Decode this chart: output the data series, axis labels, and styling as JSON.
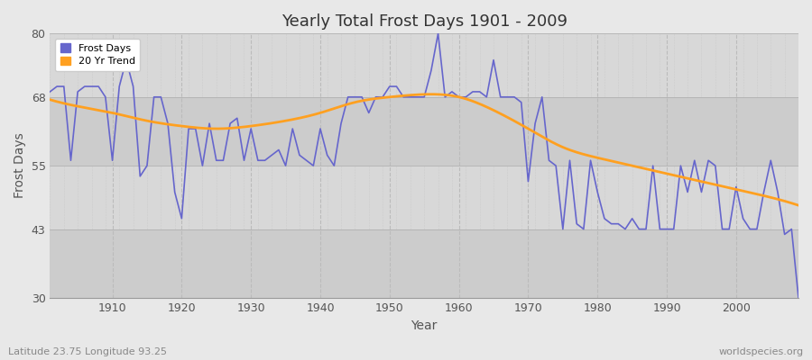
{
  "title": "Yearly Total Frost Days 1901 - 2009",
  "xlabel": "Year",
  "ylabel": "Frost Days",
  "xlim": [
    1901,
    2009
  ],
  "ylim": [
    30,
    80
  ],
  "yticks": [
    30,
    43,
    55,
    68,
    80
  ],
  "xticks": [
    1910,
    1920,
    1930,
    1940,
    1950,
    1960,
    1970,
    1980,
    1990,
    2000
  ],
  "bg_color": "#e8e8e8",
  "plot_bg_color": "#dcdcdc",
  "line_color": "#6666cc",
  "trend_color": "#ffa020",
  "legend_labels": [
    "Frost Days",
    "20 Yr Trend"
  ],
  "footer_left": "Latitude 23.75 Longitude 93.25",
  "footer_right": "worldspecies.org",
  "band_colors": [
    "#d8d8d8",
    "#e0e0e0"
  ],
  "band_ranges": [
    [
      30,
      43
    ],
    [
      43,
      55
    ],
    [
      55,
      68
    ],
    [
      68,
      80
    ]
  ],
  "frost_days": [
    69,
    70,
    70,
    56,
    69,
    70,
    70,
    70,
    68,
    56,
    70,
    75,
    70,
    53,
    55,
    68,
    68,
    63,
    50,
    45,
    62,
    62,
    55,
    63,
    56,
    56,
    63,
    64,
    56,
    62,
    56,
    56,
    57,
    58,
    55,
    62,
    57,
    56,
    55,
    62,
    57,
    55,
    63,
    68,
    68,
    68,
    65,
    68,
    68,
    70,
    70,
    68,
    68,
    68,
    68,
    73,
    80,
    68,
    69,
    68,
    68,
    69,
    69,
    68,
    75,
    68,
    68,
    68,
    67,
    52,
    63,
    68,
    56,
    55,
    43,
    56,
    44,
    43,
    56,
    50,
    45,
    44,
    44,
    43,
    45,
    43,
    43,
    55,
    43,
    43,
    43,
    55,
    50,
    56,
    50,
    56,
    55,
    43,
    43,
    51,
    45,
    43,
    43,
    50,
    56,
    50,
    42,
    43,
    30
  ],
  "trend_years": [
    1901,
    1906,
    1910,
    1915,
    1920,
    1925,
    1930,
    1935,
    1940,
    1945,
    1950,
    1955,
    1960,
    1965,
    1970,
    1975,
    1980,
    1985,
    1990,
    1995,
    2000,
    2005,
    2009
  ],
  "trend_values": [
    67.5,
    66,
    65,
    63.5,
    62.5,
    62,
    62.5,
    63.5,
    65,
    67,
    68,
    68.5,
    68,
    65.5,
    62,
    58.5,
    56.5,
    55,
    53.5,
    52,
    50.5,
    49,
    47.5
  ]
}
